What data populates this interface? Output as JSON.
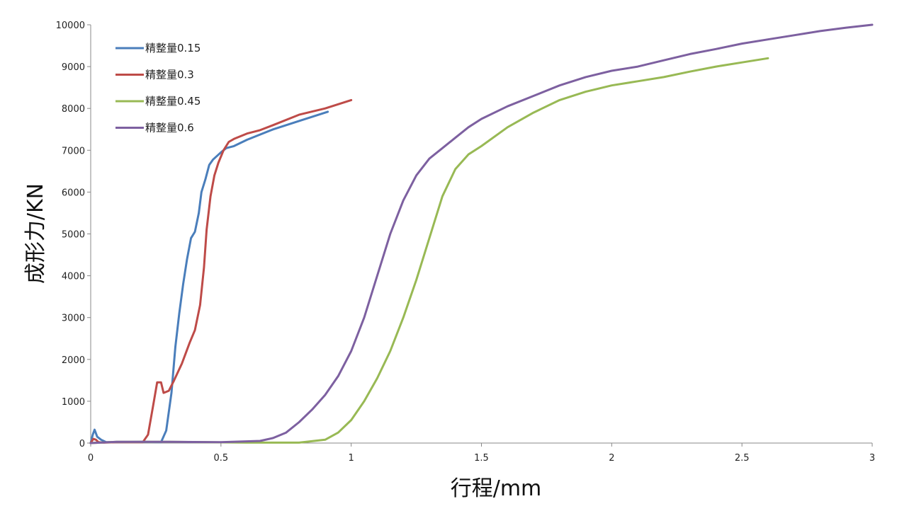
{
  "chart_data": {
    "type": "line",
    "title": "",
    "xlabel": "行程/mm",
    "ylabel": "成形力/KN",
    "xlim": [
      0,
      3
    ],
    "ylim": [
      0,
      10000
    ],
    "x_ticks": [
      "0",
      "0.5",
      "1",
      "1.5",
      "2",
      "2.5",
      "3"
    ],
    "y_ticks": [
      "0",
      "1000",
      "2000",
      "3000",
      "4000",
      "5000",
      "6000",
      "7000",
      "8000",
      "9000",
      "10000"
    ],
    "grid": false,
    "legend_position": "top-left",
    "series": [
      {
        "name": "精整量0.15",
        "color": "#4a7ebb",
        "points": [
          [
            0,
            0
          ],
          [
            0.008,
            200
          ],
          [
            0.015,
            320
          ],
          [
            0.025,
            150
          ],
          [
            0.04,
            80
          ],
          [
            0.06,
            20
          ],
          [
            0.1,
            20
          ],
          [
            0.2,
            30
          ],
          [
            0.27,
            20
          ],
          [
            0.29,
            300
          ],
          [
            0.31,
            1200
          ],
          [
            0.325,
            2300
          ],
          [
            0.34,
            3100
          ],
          [
            0.355,
            3800
          ],
          [
            0.37,
            4400
          ],
          [
            0.385,
            4900
          ],
          [
            0.4,
            5050
          ],
          [
            0.415,
            5500
          ],
          [
            0.425,
            6000
          ],
          [
            0.44,
            6300
          ],
          [
            0.455,
            6650
          ],
          [
            0.47,
            6780
          ],
          [
            0.5,
            6950
          ],
          [
            0.52,
            7050
          ],
          [
            0.55,
            7100
          ],
          [
            0.6,
            7250
          ],
          [
            0.7,
            7500
          ],
          [
            0.8,
            7700
          ],
          [
            0.91,
            7920
          ]
        ]
      },
      {
        "name": "精整量0.3",
        "color": "#be4b48",
        "points": [
          [
            0,
            0
          ],
          [
            0.01,
            100
          ],
          [
            0.02,
            80
          ],
          [
            0.03,
            20
          ],
          [
            0.05,
            10
          ],
          [
            0.1,
            20
          ],
          [
            0.2,
            20
          ],
          [
            0.22,
            200
          ],
          [
            0.24,
            900
          ],
          [
            0.255,
            1450
          ],
          [
            0.27,
            1450
          ],
          [
            0.28,
            1200
          ],
          [
            0.3,
            1250
          ],
          [
            0.32,
            1500
          ],
          [
            0.35,
            1900
          ],
          [
            0.38,
            2400
          ],
          [
            0.4,
            2700
          ],
          [
            0.42,
            3300
          ],
          [
            0.435,
            4200
          ],
          [
            0.445,
            5100
          ],
          [
            0.46,
            5900
          ],
          [
            0.475,
            6400
          ],
          [
            0.49,
            6700
          ],
          [
            0.51,
            7000
          ],
          [
            0.53,
            7200
          ],
          [
            0.55,
            7270
          ],
          [
            0.6,
            7400
          ],
          [
            0.65,
            7480
          ],
          [
            0.7,
            7600
          ],
          [
            0.8,
            7850
          ],
          [
            0.9,
            8000
          ],
          [
            1.0,
            8200
          ]
        ]
      },
      {
        "name": "精整量0.45",
        "color": "#98b954",
        "points": [
          [
            0,
            0
          ],
          [
            0.1,
            30
          ],
          [
            0.3,
            30
          ],
          [
            0.6,
            10
          ],
          [
            0.8,
            10
          ],
          [
            0.9,
            80
          ],
          [
            0.95,
            250
          ],
          [
            1.0,
            550
          ],
          [
            1.05,
            1000
          ],
          [
            1.1,
            1550
          ],
          [
            1.15,
            2200
          ],
          [
            1.2,
            3000
          ],
          [
            1.25,
            3900
          ],
          [
            1.3,
            4900
          ],
          [
            1.35,
            5900
          ],
          [
            1.4,
            6550
          ],
          [
            1.45,
            6900
          ],
          [
            1.5,
            7100
          ],
          [
            1.6,
            7550
          ],
          [
            1.7,
            7900
          ],
          [
            1.8,
            8200
          ],
          [
            1.9,
            8400
          ],
          [
            2.0,
            8550
          ],
          [
            2.1,
            8650
          ],
          [
            2.2,
            8750
          ],
          [
            2.3,
            8880
          ],
          [
            2.4,
            9000
          ],
          [
            2.5,
            9100
          ],
          [
            2.6,
            9200
          ]
        ]
      },
      {
        "name": "精整量0.6",
        "color": "#7d60a0",
        "points": [
          [
            0,
            0
          ],
          [
            0.1,
            30
          ],
          [
            0.3,
            30
          ],
          [
            0.5,
            20
          ],
          [
            0.65,
            50
          ],
          [
            0.7,
            120
          ],
          [
            0.75,
            250
          ],
          [
            0.8,
            500
          ],
          [
            0.85,
            800
          ],
          [
            0.9,
            1150
          ],
          [
            0.95,
            1600
          ],
          [
            1.0,
            2200
          ],
          [
            1.05,
            3000
          ],
          [
            1.1,
            4000
          ],
          [
            1.15,
            5000
          ],
          [
            1.2,
            5800
          ],
          [
            1.25,
            6400
          ],
          [
            1.3,
            6800
          ],
          [
            1.35,
            7050
          ],
          [
            1.4,
            7300
          ],
          [
            1.45,
            7550
          ],
          [
            1.5,
            7750
          ],
          [
            1.6,
            8050
          ],
          [
            1.7,
            8300
          ],
          [
            1.8,
            8550
          ],
          [
            1.9,
            8750
          ],
          [
            2.0,
            8900
          ],
          [
            2.1,
            9000
          ],
          [
            2.2,
            9150
          ],
          [
            2.3,
            9300
          ],
          [
            2.4,
            9420
          ],
          [
            2.5,
            9550
          ],
          [
            2.6,
            9650
          ],
          [
            2.7,
            9750
          ],
          [
            2.8,
            9850
          ],
          [
            2.9,
            9930
          ],
          [
            3.0,
            10000
          ]
        ]
      }
    ]
  }
}
